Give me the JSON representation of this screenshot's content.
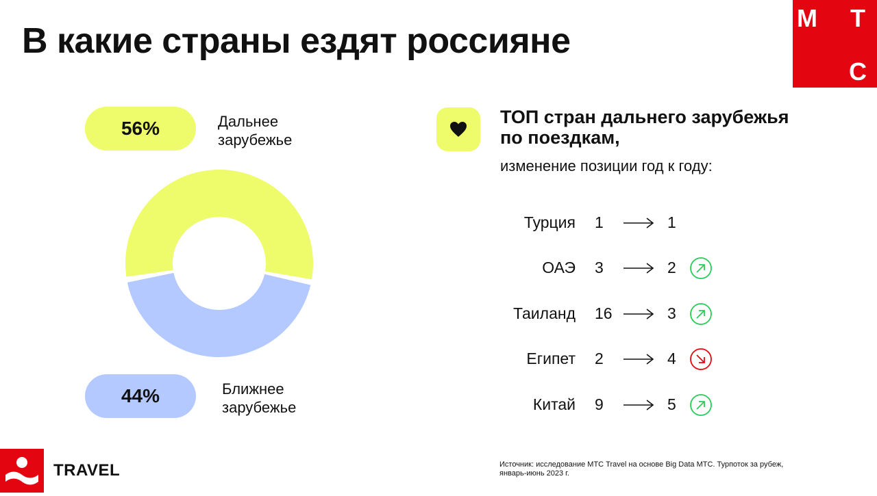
{
  "title": "В какие страны ездят россияне",
  "brand": {
    "letters": [
      "М",
      "Т",
      "С"
    ],
    "accent": "#e30611"
  },
  "chart_data": {
    "type": "pie",
    "variant": "donut",
    "slices": [
      {
        "label": "Дальнее зарубежье",
        "value": 56,
        "value_label": "56%",
        "color": "#eefb6a"
      },
      {
        "label": "Ближнее зарубежье",
        "value": 44,
        "value_label": "44%",
        "color": "#b3c9ff"
      }
    ]
  },
  "top_list": {
    "icon": "heart-icon",
    "title": "ТОП стран дальнего зарубежья по поездкам,",
    "subtitle": "изменение позиции год к году:",
    "rows": [
      {
        "country": "Турция",
        "from": "1",
        "to": "1",
        "change": "none"
      },
      {
        "country": "ОАЭ",
        "from": "3",
        "to": "2",
        "change": "up"
      },
      {
        "country": "Таиланд",
        "from": "16",
        "to": "3",
        "change": "up"
      },
      {
        "country": "Египет",
        "from": "2",
        "to": "4",
        "change": "down"
      },
      {
        "country": "Китай",
        "from": "9",
        "to": "5",
        "change": "up"
      }
    ],
    "colors": {
      "up": "#26cd58",
      "down": "#e30611"
    }
  },
  "footer": {
    "travel_label": "TRAVEL",
    "source": "Источник: исследование МТС Travel на основе Big Data МТС. Турпоток за рубеж, январь-июнь 2023 г."
  }
}
